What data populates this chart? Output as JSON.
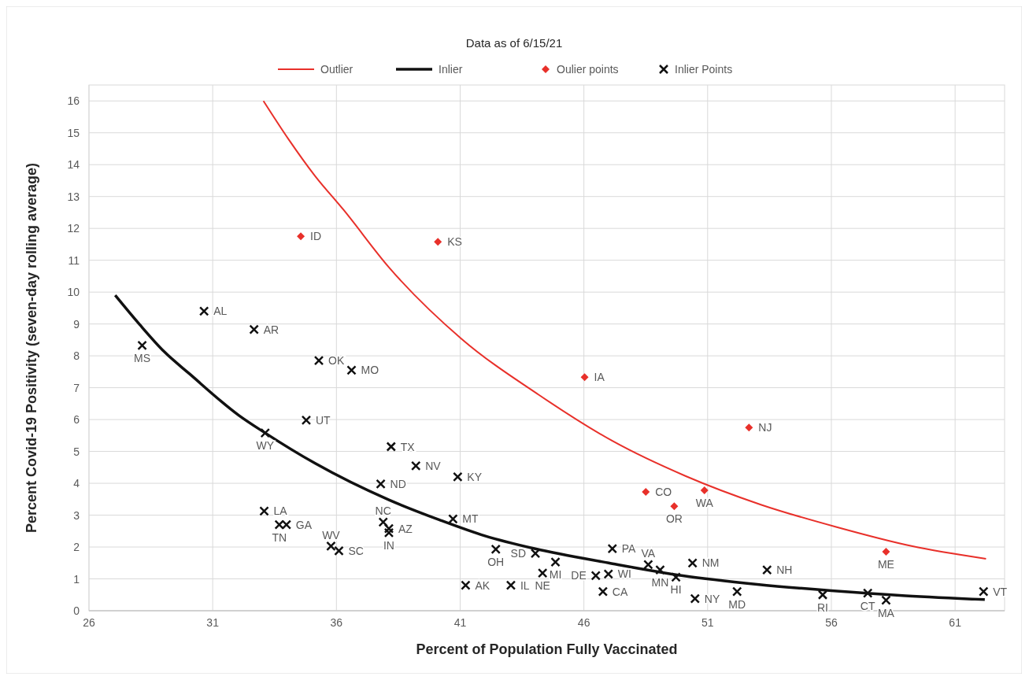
{
  "chart_data": {
    "type": "line",
    "title": "Data as of 6/15/21",
    "xlabel": "Percent of Population Fully Vaccinated",
    "ylabel": "Percent Covid-19 Positivity (seven-day rolling average)",
    "xlim": [
      26,
      63
    ],
    "xticks": [
      26,
      31,
      36,
      41,
      46,
      51,
      56,
      61
    ],
    "ylim": [
      0,
      16.5
    ],
    "yticks": [
      0,
      1,
      2,
      3,
      4,
      5,
      6,
      7,
      8,
      9,
      10,
      11,
      12,
      13,
      14,
      15,
      16
    ],
    "grid": true,
    "legend": "top",
    "series": [
      {
        "name": "Outlier",
        "color": "#e8302a",
        "marker": "none",
        "x": [
          33.05,
          34.08,
          35.13,
          36.29,
          38.12,
          41.06,
          44.17,
          47.15,
          50.1,
          53.15,
          56.19,
          59.24,
          62.25
        ],
        "values": [
          16,
          14.78,
          13.65,
          12.58,
          10.78,
          8.53,
          6.78,
          5.33,
          4.23,
          3.33,
          2.63,
          2.03,
          1.63
        ]
      },
      {
        "name": "Inlier",
        "color": "#111111",
        "marker": "none",
        "x": [
          27.06,
          28.05,
          29.04,
          30.07,
          32.06,
          33.12,
          35.13,
          38.12,
          40.17,
          42,
          44,
          47,
          50,
          53,
          56,
          59,
          62.2
        ],
        "values": [
          9.9,
          8.98,
          8.13,
          7.43,
          6.13,
          5.58,
          4.63,
          3.48,
          2.85,
          2.35,
          1.95,
          1.5,
          1.1,
          0.83,
          0.63,
          0.47,
          0.35
        ]
      },
      {
        "name": "Oulier points",
        "type": "scatter",
        "color": "#e8302a",
        "marker": "diamond",
        "x": [
          34.56,
          40.1,
          46.03,
          52.67,
          48.5,
          50.87,
          49.65,
          58.21
        ],
        "values": [
          11.75,
          11.58,
          7.33,
          5.75,
          3.73,
          3.78,
          3.28,
          1.85
        ]
      },
      {
        "name": "Inlier Points",
        "type": "scatter",
        "color": "#111111",
        "marker": "cross",
        "x": [
          28.15,
          30.65,
          32.67,
          35.29,
          36.61,
          34.78,
          33.12,
          33.08,
          33.69,
          33.98,
          35.78,
          36.1,
          38.21,
          39.21,
          37.79,
          40.9,
          37.89,
          38.12,
          38.12,
          40.71,
          42.44,
          44.04,
          44.85,
          44.33,
          41.22,
          43.05,
          47.15,
          46.48,
          46.99,
          46.77,
          48.6,
          49.08,
          49.72,
          50.39,
          50.49,
          52.19,
          53.4,
          55.65,
          57.47,
          58.21,
          62.15
        ],
        "values": [
          8.33,
          9.4,
          8.83,
          7.85,
          7.55,
          5.98,
          5.58,
          3.13,
          2.7,
          2.7,
          2.03,
          1.88,
          5.15,
          4.55,
          3.98,
          4.2,
          2.78,
          2.58,
          2.45,
          2.88,
          1.93,
          1.8,
          1.53,
          1.18,
          0.8,
          0.8,
          1.95,
          1.1,
          1.15,
          0.6,
          1.45,
          1.28,
          1.05,
          1.5,
          0.38,
          0.6,
          1.28,
          0.5,
          0.55,
          0.33,
          0.6
        ]
      }
    ],
    "annotations": [
      {
        "text": "ID",
        "x": 34.56,
        "y": 11.75
      },
      {
        "text": "KS",
        "x": 40.1,
        "y": 11.58
      },
      {
        "text": "IA",
        "x": 46.03,
        "y": 7.33
      },
      {
        "text": "NJ",
        "x": 52.67,
        "y": 5.75
      },
      {
        "text": "CO",
        "x": 48.5,
        "y": 3.73
      },
      {
        "text": "WA",
        "x": 50.87,
        "y": 3.78
      },
      {
        "text": "OR",
        "x": 49.65,
        "y": 3.28
      },
      {
        "text": "ME",
        "x": 58.21,
        "y": 1.85
      },
      {
        "text": "MS",
        "x": 28.15,
        "y": 8.33
      },
      {
        "text": "AL",
        "x": 30.65,
        "y": 9.4
      },
      {
        "text": "AR",
        "x": 32.67,
        "y": 8.83
      },
      {
        "text": "OK",
        "x": 35.29,
        "y": 7.85
      },
      {
        "text": "MO",
        "x": 36.61,
        "y": 7.55
      },
      {
        "text": "UT",
        "x": 34.78,
        "y": 5.98
      },
      {
        "text": "WY",
        "x": 33.12,
        "y": 5.58
      },
      {
        "text": "LA",
        "x": 33.08,
        "y": 3.13
      },
      {
        "text": "TN",
        "x": 33.69,
        "y": 2.7
      },
      {
        "text": "GA",
        "x": 33.98,
        "y": 2.7
      },
      {
        "text": "WV",
        "x": 35.78,
        "y": 2.03
      },
      {
        "text": "SC",
        "x": 36.1,
        "y": 1.88
      },
      {
        "text": "TX",
        "x": 38.21,
        "y": 5.15
      },
      {
        "text": "NV",
        "x": 39.21,
        "y": 4.55
      },
      {
        "text": "ND",
        "x": 37.79,
        "y": 3.98
      },
      {
        "text": "KY",
        "x": 40.9,
        "y": 4.2
      },
      {
        "text": "NC",
        "x": 37.89,
        "y": 2.78
      },
      {
        "text": "AZ",
        "x": 38.12,
        "y": 2.58
      },
      {
        "text": "IN",
        "x": 38.12,
        "y": 2.45
      },
      {
        "text": "MT",
        "x": 40.71,
        "y": 2.88
      },
      {
        "text": "OH",
        "x": 42.44,
        "y": 1.93
      },
      {
        "text": "SD",
        "x": 44.04,
        "y": 1.8
      },
      {
        "text": "MI",
        "x": 44.85,
        "y": 1.53
      },
      {
        "text": "NE",
        "x": 44.33,
        "y": 1.18
      },
      {
        "text": "AK",
        "x": 41.22,
        "y": 0.8
      },
      {
        "text": "IL",
        "x": 43.05,
        "y": 0.8
      },
      {
        "text": "PA",
        "x": 47.15,
        "y": 1.95
      },
      {
        "text": "DE",
        "x": 46.48,
        "y": 1.1
      },
      {
        "text": "WI",
        "x": 46.99,
        "y": 1.15
      },
      {
        "text": "CA",
        "x": 46.77,
        "y": 0.6
      },
      {
        "text": "VA",
        "x": 48.6,
        "y": 1.45
      },
      {
        "text": "MN",
        "x": 49.08,
        "y": 1.28
      },
      {
        "text": "HI",
        "x": 49.72,
        "y": 1.05
      },
      {
        "text": "NM",
        "x": 50.39,
        "y": 1.5
      },
      {
        "text": "NY",
        "x": 50.49,
        "y": 0.38
      },
      {
        "text": "MD",
        "x": 52.19,
        "y": 0.6
      },
      {
        "text": "NH",
        "x": 53.4,
        "y": 1.28
      },
      {
        "text": "RI",
        "x": 55.65,
        "y": 0.5
      },
      {
        "text": "CT",
        "x": 57.47,
        "y": 0.55
      },
      {
        "text": "MA",
        "x": 58.21,
        "y": 0.33
      },
      {
        "text": "VT",
        "x": 62.15,
        "y": 0.6
      }
    ]
  }
}
